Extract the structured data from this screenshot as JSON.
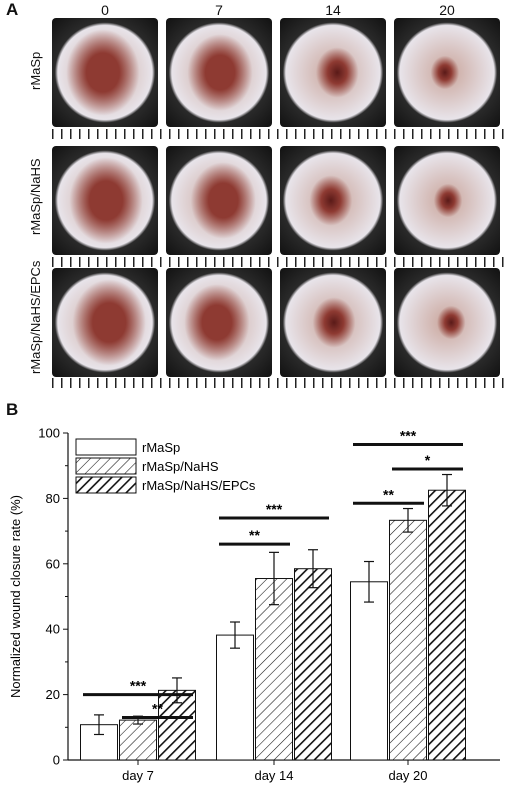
{
  "panel_a": {
    "label": "A",
    "days": [
      "0",
      "7",
      "14",
      "20"
    ],
    "rows": [
      "rMaSp",
      "rMaSp/NaHS",
      "rMaSp/NaHS/EPCs"
    ]
  },
  "panel_b": {
    "label": "B"
  },
  "colors": {
    "wound_dark": "#5a1a18",
    "wound_mid": "#8e3a32",
    "skin": "#c9a49a",
    "film": "#e8e4ea",
    "background_plate": "#2a2a2a"
  },
  "chart_data": {
    "type": "bar",
    "categories": [
      "day 7",
      "day 14",
      "day 20"
    ],
    "ylabel": "Normalized wound closure rate (%)",
    "xlabel": "",
    "ylim": [
      0,
      100
    ],
    "yticks": [
      0,
      20,
      40,
      60,
      80,
      100
    ],
    "legend_position": "top-left",
    "series": [
      {
        "name": "rMaSp",
        "pattern": "none",
        "values": [
          10.8,
          38.2,
          54.5
        ],
        "errors": [
          3.0,
          4.0,
          6.2
        ]
      },
      {
        "name": "rMaSp/NaHS",
        "pattern": "sparse-hatch",
        "values": [
          12.2,
          55.5,
          73.3
        ],
        "errors": [
          1.2,
          8.0,
          3.6
        ]
      },
      {
        "name": "rMaSp/NaHS/EPCs",
        "pattern": "dense-hatch",
        "values": [
          21.3,
          58.5,
          82.5
        ],
        "errors": [
          3.8,
          5.8,
          4.8
        ]
      }
    ],
    "significance": [
      {
        "category": "day 7",
        "from": 0,
        "to": 2,
        "level": 20,
        "label": "***"
      },
      {
        "category": "day 7",
        "from": 1,
        "to": 2,
        "level": 13,
        "label": "**"
      },
      {
        "category": "day 14",
        "from": 0,
        "to": 2,
        "level": 74,
        "label": "***"
      },
      {
        "category": "day 14",
        "from": 0,
        "to": 1,
        "level": 66,
        "label": "**"
      },
      {
        "category": "day 20",
        "from": 0,
        "to": 2,
        "level": 96.5,
        "label": "***"
      },
      {
        "category": "day 20",
        "from": 1,
        "to": 2,
        "level": 89,
        "label": "*"
      },
      {
        "category": "day 20",
        "from": 0,
        "to": 1,
        "level": 78.5,
        "label": "**"
      }
    ]
  }
}
